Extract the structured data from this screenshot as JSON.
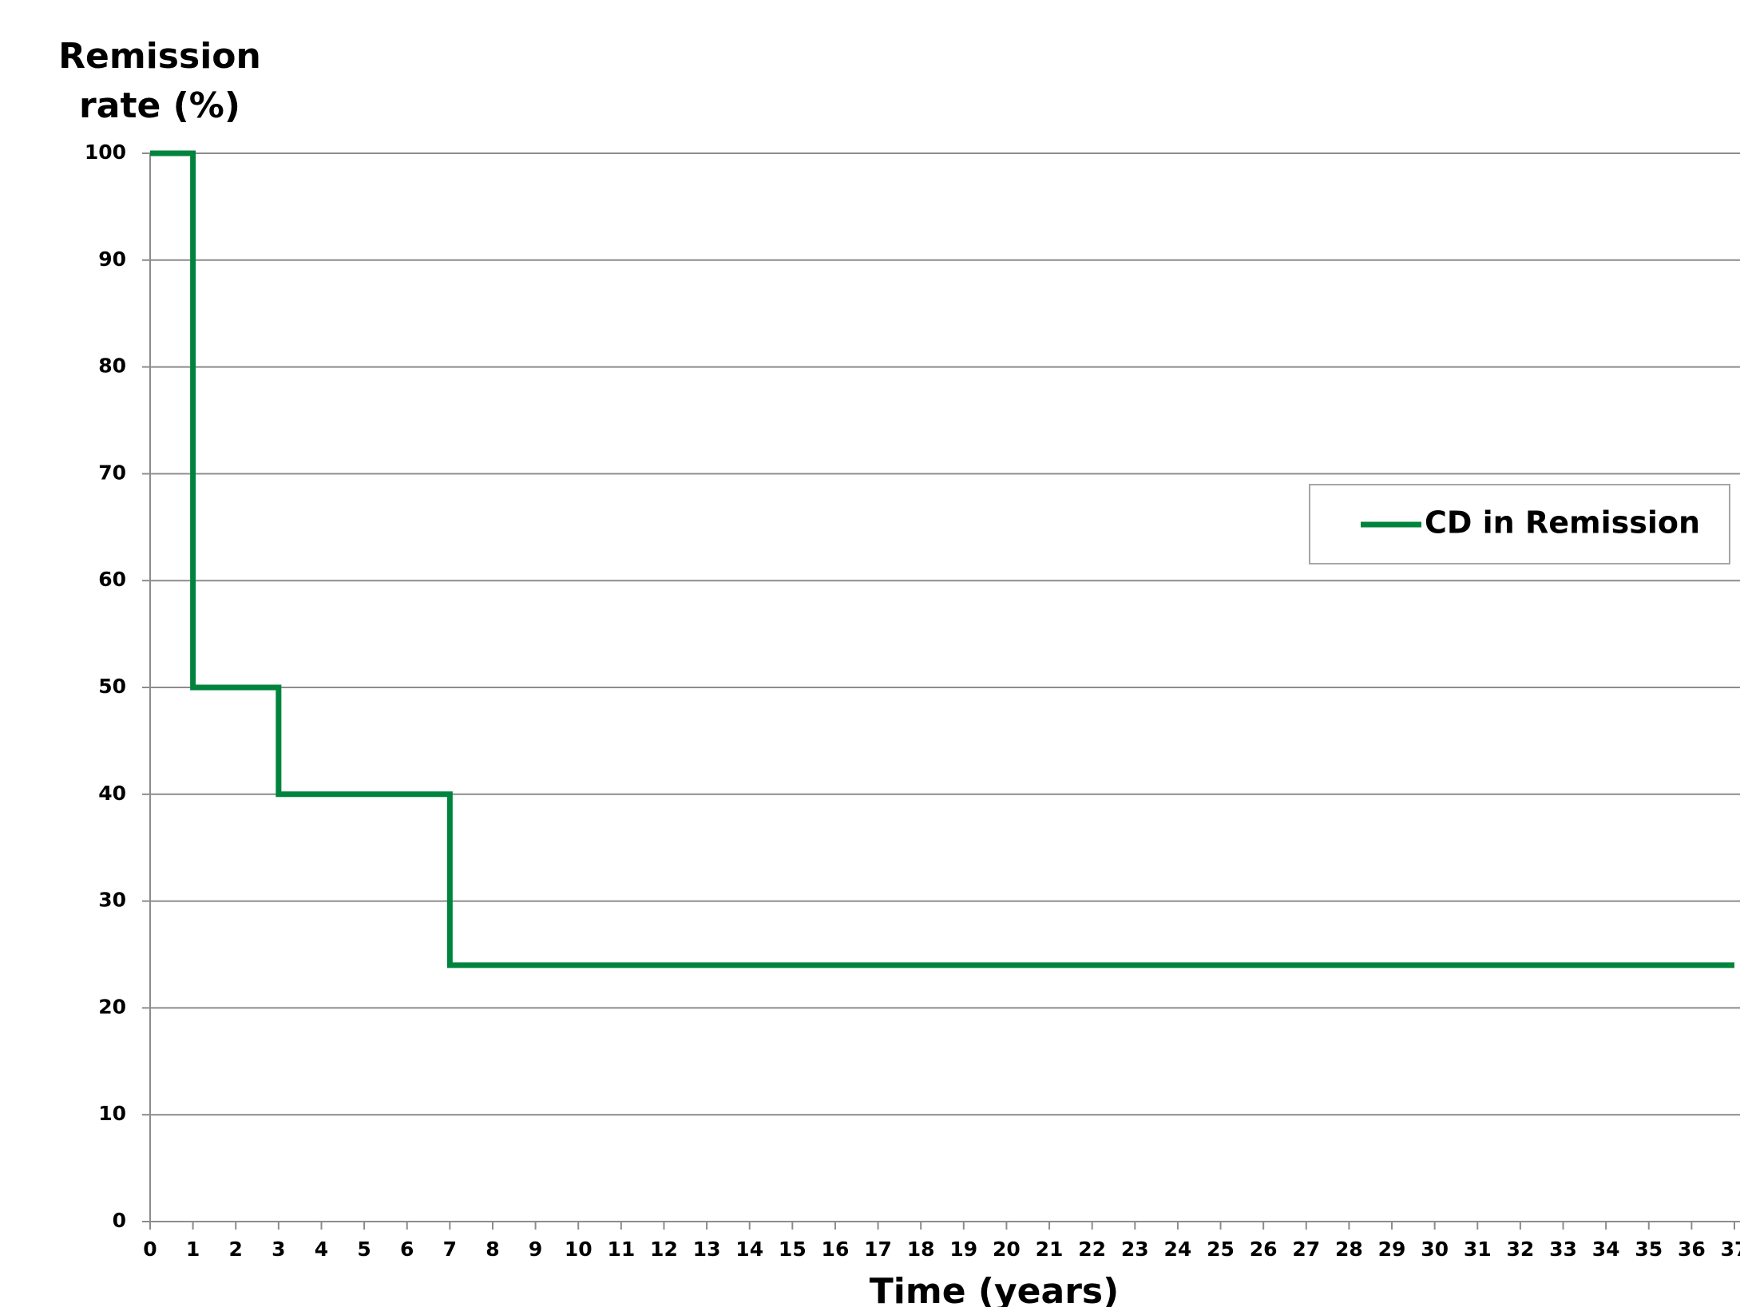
{
  "chart_data": {
    "type": "line",
    "ylabel": "Remission rate (%)",
    "xlabel": "Time (years)",
    "x": [
      0,
      1,
      1,
      3,
      3,
      7,
      7,
      37
    ],
    "series": [
      {
        "name": "CD in Remission",
        "color": "#00843d",
        "values": [
          100,
          100,
          50,
          50,
          40,
          40,
          24,
          24
        ]
      }
    ],
    "xlim": [
      0,
      37
    ],
    "xticks": [
      0,
      1,
      2,
      3,
      4,
      5,
      6,
      7,
      8,
      9,
      10,
      11,
      12,
      13,
      14,
      15,
      16,
      17,
      18,
      19,
      20,
      21,
      22,
      23,
      24,
      25,
      26,
      27,
      28,
      29,
      30,
      31,
      32,
      33,
      34,
      35,
      36,
      37
    ],
    "ylim": [
      0,
      100
    ],
    "yticks": [
      0,
      10,
      20,
      30,
      40,
      50,
      60,
      70,
      80,
      90,
      100
    ],
    "grid": true,
    "legend": "right"
  }
}
